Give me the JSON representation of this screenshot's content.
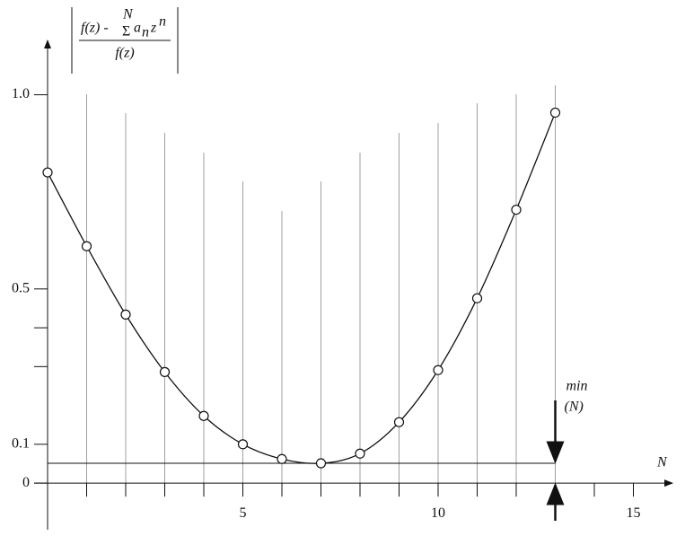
{
  "chart_data": {
    "type": "line",
    "y_label": {
      "numerator": {
        "lhs": "f(z) -",
        "sum_sign": "Σ",
        "sum_limit": "N",
        "term": "a",
        "term_index": "n",
        "power_base": "z",
        "power_exp": "n"
      },
      "denominator": "f(z)"
    },
    "x_label": "N",
    "annotation": {
      "line1": "min",
      "line2": "(N)",
      "at": 13
    },
    "x": [
      0,
      1,
      2,
      3,
      4,
      5,
      6,
      7,
      8,
      9,
      10,
      11,
      12,
      13
    ],
    "series": [
      {
        "color": "#111111",
        "values": [
          0.8,
          0.61,
          0.434,
          0.286,
          0.173,
          0.1,
          0.062,
          0.051,
          0.076,
          0.157,
          0.291,
          0.476,
          0.704,
          0.954
        ]
      }
    ],
    "min_line": 0.051,
    "xlim": [
      0,
      16
    ],
    "ylim": [
      -0.12,
      1.14
    ],
    "xticks": [
      5,
      10,
      15
    ],
    "xminorticks": [
      1,
      2,
      3,
      4,
      6,
      7,
      8,
      9,
      11,
      12,
      13,
      14
    ],
    "yticks": [
      0,
      0.1,
      0.5,
      {
        "value": 1,
        "label": "1.0"
      }
    ],
    "yminorticks": [
      0.3,
      0.4
    ]
  }
}
